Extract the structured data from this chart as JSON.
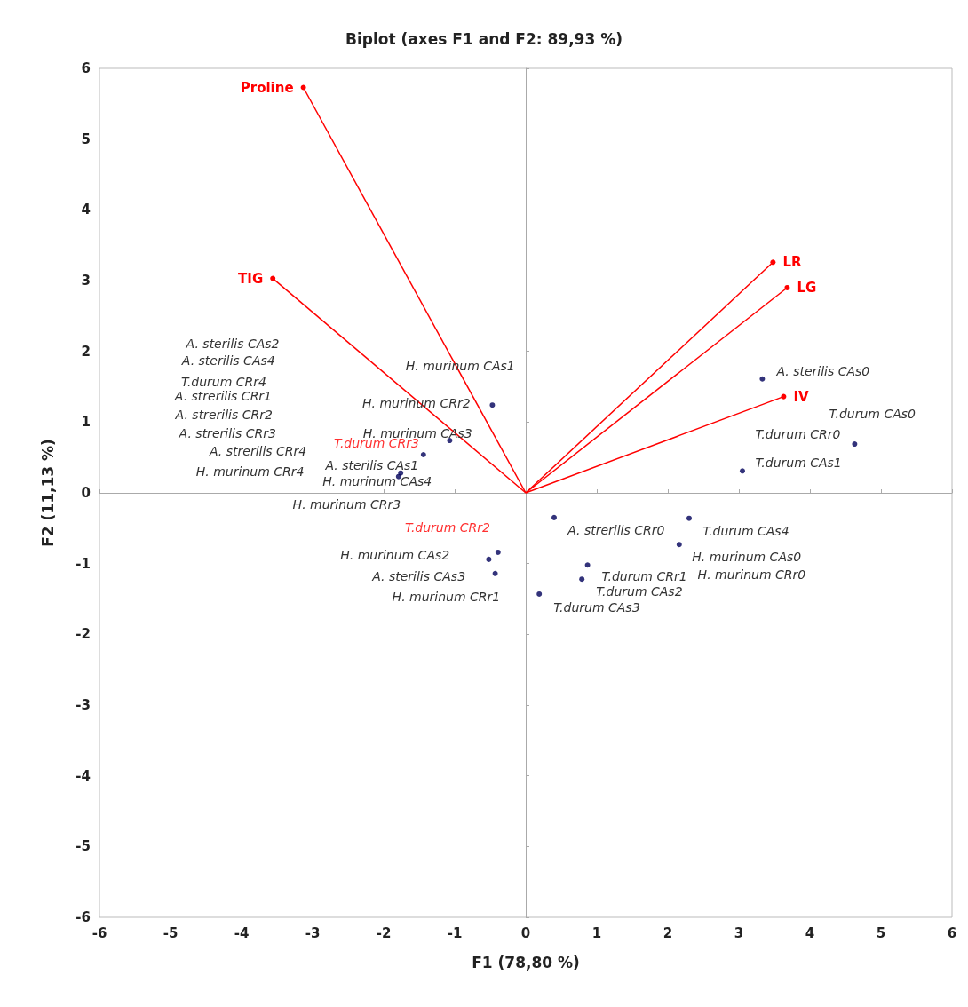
{
  "chart_data": {
    "type": "scatter",
    "title": "Biplot (axes F1 and F2: 89,93 %)",
    "xlabel": "F1 (78,80 %)",
    "ylabel": "F2 (11,13 %)",
    "xlim": [
      -6,
      6
    ],
    "ylim": [
      -6,
      6
    ],
    "xticks": [
      -6,
      -5,
      -4,
      -3,
      -2,
      -1,
      0,
      1,
      2,
      3,
      4,
      5,
      6
    ],
    "yticks": [
      -6,
      -5,
      -4,
      -3,
      -2,
      -1,
      0,
      1,
      2,
      3,
      4,
      5,
      6
    ],
    "marker": "circle",
    "legend": false,
    "series": [
      {
        "color": "#00005a",
        "x": [
          -0.47,
          -1.07,
          -1.44,
          -1.76,
          -1.79,
          0.4,
          2.3,
          2.16,
          0.87,
          0.79,
          0.19,
          -0.52,
          -0.39,
          -0.43,
          3.33,
          4.63,
          3.05
        ],
        "values": [
          1.24,
          0.74,
          0.54,
          0.28,
          0.23,
          -0.35,
          -0.36,
          -0.73,
          -1.02,
          -1.22,
          -1.43,
          -0.94,
          -0.84,
          -1.14,
          1.61,
          0.69,
          0.31
        ]
      },
      {
        "type": "line",
        "name": "Proline",
        "color": "#ff0000",
        "x": [
          0,
          -3.13
        ],
        "values": [
          0,
          5.73
        ]
      },
      {
        "type": "line",
        "name": "TIG",
        "color": "#ff0000",
        "x": [
          0,
          -3.56
        ],
        "values": [
          0,
          3.03
        ]
      },
      {
        "type": "line",
        "name": "LR",
        "color": "#ff0000",
        "x": [
          0,
          3.48
        ],
        "values": [
          0,
          3.26
        ]
      },
      {
        "type": "line",
        "name": "LG",
        "color": "#ff0000",
        "x": [
          0,
          3.68
        ],
        "values": [
          0,
          2.9
        ]
      },
      {
        "type": "line",
        "name": "IV",
        "color": "#ff0000",
        "x": [
          0,
          3.63
        ],
        "values": [
          0,
          1.36
        ]
      }
    ],
    "annotations": [
      "A. sterilis CAs2",
      "A. sterilis CAs4",
      "T.durum CRr4",
      "A. strerilis CRr1",
      "A. strerilis CRr2",
      "A. strerilis CRr3",
      "A. strerilis CRr4",
      "H. murinum CRr4",
      "H. murinum CAs1",
      "H. murinum CRr2",
      "H. murinum CAs3",
      "T.durum CRr3",
      "A. sterilis CAs1",
      "H. murinum CAs4",
      "H. murinum CRr3",
      "T.durum CRr2",
      "H. murinum CAs2",
      "A. sterilis CAs3",
      "H. murinum CRr1",
      "A. strerilis CRr0",
      "T.durum CAs4",
      "H. murinum CAs0",
      "H. murinum CRr0",
      "T.durum CRr1",
      "T.durum CAs2",
      "T.durum CAs3",
      "A. sterilis CAs0",
      "T.durum CAs0",
      "T.durum CRr0",
      "T.durum CAs1"
    ]
  }
}
